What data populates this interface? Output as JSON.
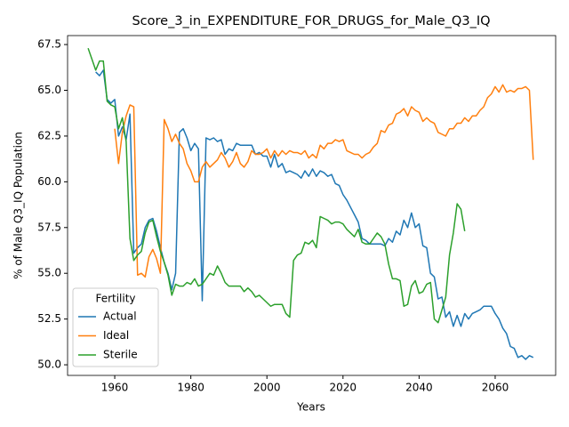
{
  "chart_data": {
    "type": "line",
    "title": "Score_3_in_EXPENDITURE_FOR_DRUGS_for_Male_Q3_IQ",
    "xlabel": "Years",
    "ylabel": "% of Male Q3_IQ Population",
    "legend_title": "Fertility",
    "legend": "lower left",
    "xlim": [
      1947.6,
      2075.9
    ],
    "ylim": [
      49.42,
      67.99
    ],
    "xticks": [
      1960,
      1980,
      2000,
      2020,
      2040,
      2060
    ],
    "yticks": [
      {
        "value": 50,
        "label": "50.0"
      },
      52.5,
      {
        "value": 55,
        "label": "55.0"
      },
      57.5,
      {
        "value": 60,
        "label": "60.0"
      },
      62.5,
      {
        "value": 65,
        "label": "65.0"
      },
      67.5
    ],
    "x": [
      1953,
      1954,
      1955,
      1956,
      1957,
      1958,
      1959,
      1960,
      1961,
      1962,
      1963,
      1964,
      1965,
      1966,
      1967,
      1968,
      1969,
      1970,
      1971,
      1972,
      1973,
      1974,
      1975,
      1976,
      1977,
      1978,
      1979,
      1980,
      1981,
      1982,
      1983,
      1984,
      1985,
      1986,
      1987,
      1988,
      1989,
      1990,
      1991,
      1992,
      1993,
      1994,
      1995,
      1996,
      1997,
      1998,
      1999,
      2000,
      2001,
      2002,
      2003,
      2004,
      2005,
      2006,
      2007,
      2008,
      2009,
      2010,
      2011,
      2012,
      2013,
      2014,
      2015,
      2016,
      2017,
      2018,
      2019,
      2020,
      2021,
      2022,
      2023,
      2024,
      2025,
      2026,
      2027,
      2028,
      2029,
      2030,
      2031,
      2032,
      2033,
      2034,
      2035,
      2036,
      2037,
      2038,
      2039,
      2040,
      2041,
      2042,
      2043,
      2044,
      2045,
      2046,
      2047,
      2048,
      2049,
      2050,
      2051,
      2052,
      2053,
      2054,
      2055,
      2056,
      2057,
      2058,
      2059,
      2060,
      2061,
      2062,
      2063,
      2064,
      2065,
      2066,
      2067,
      2068,
      2069,
      2070
    ],
    "series": [
      {
        "name": "Actual",
        "color": "#1f77b4",
        "values": [
          null,
          null,
          66.0,
          65.8,
          66.1,
          64.5,
          64.3,
          64.5,
          62.5,
          63.0,
          62.3,
          63.7,
          56.1,
          56.4,
          56.6,
          57.5,
          57.9,
          58.0,
          57.3,
          56.4,
          55.6,
          55.0,
          54.1,
          55.0,
          62.7,
          62.9,
          62.4,
          61.7,
          62.1,
          61.8,
          53.5,
          62.4,
          62.3,
          62.4,
          62.2,
          62.3,
          61.5,
          61.8,
          61.7,
          62.1,
          62.0,
          62.0,
          62.0,
          62.0,
          61.5,
          61.6,
          61.4,
          61.4,
          60.8,
          61.5,
          60.8,
          61.0,
          60.5,
          60.6,
          60.5,
          60.4,
          60.2,
          60.6,
          60.3,
          60.7,
          60.3,
          60.6,
          60.5,
          60.3,
          60.4,
          59.9,
          59.8,
          59.3,
          59.0,
          58.6,
          58.2,
          57.8,
          56.9,
          56.8,
          56.6,
          56.6,
          56.6,
          56.6,
          56.5,
          56.9,
          56.7,
          57.3,
          57.1,
          57.9,
          57.5,
          58.3,
          57.5,
          57.7,
          56.5,
          56.4,
          55.0,
          54.8,
          53.6,
          53.7,
          52.6,
          52.9,
          52.1,
          52.7,
          52.1,
          52.8,
          52.5,
          52.8,
          52.9,
          53.0,
          53.2,
          53.2,
          53.2,
          52.8,
          52.5,
          52.0,
          51.7,
          51.0,
          50.9,
          50.4,
          50.5,
          50.3,
          50.5,
          50.4
        ]
      },
      {
        "name": "Ideal",
        "color": "#ff7f0e",
        "values": [
          null,
          null,
          null,
          null,
          null,
          null,
          null,
          62.9,
          61.0,
          62.7,
          63.6,
          64.2,
          64.1,
          54.9,
          55.0,
          54.8,
          55.9,
          56.3,
          55.8,
          55.0,
          63.4,
          62.9,
          62.2,
          62.6,
          62.1,
          61.8,
          61.0,
          60.6,
          60.0,
          60.0,
          60.8,
          61.1,
          60.8,
          61.0,
          61.2,
          61.6,
          61.3,
          60.8,
          61.1,
          61.6,
          61.0,
          60.8,
          61.1,
          61.7,
          61.5,
          61.5,
          61.6,
          61.8,
          61.3,
          61.7,
          61.4,
          61.7,
          61.5,
          61.7,
          61.6,
          61.6,
          61.5,
          61.7,
          61.3,
          61.5,
          61.3,
          62.0,
          61.8,
          62.1,
          62.1,
          62.3,
          62.2,
          62.3,
          61.7,
          61.6,
          61.5,
          61.5,
          61.3,
          61.5,
          61.6,
          61.9,
          62.1,
          62.8,
          62.7,
          63.1,
          63.2,
          63.7,
          63.8,
          64.0,
          63.6,
          64.1,
          63.9,
          63.8,
          63.3,
          63.5,
          63.3,
          63.2,
          62.7,
          62.6,
          62.5,
          62.9,
          62.9,
          63.2,
          63.2,
          63.5,
          63.3,
          63.6,
          63.6,
          63.9,
          64.1,
          64.6,
          64.8,
          65.2,
          64.9,
          65.3,
          64.9,
          65.0,
          64.9,
          65.1,
          65.1,
          65.2,
          65.0,
          61.2
        ]
      },
      {
        "name": "Sterile",
        "color": "#2ca02c",
        "values": [
          67.3,
          66.7,
          66.1,
          66.6,
          66.6,
          64.4,
          64.2,
          64.1,
          62.9,
          63.5,
          62.2,
          56.9,
          55.7,
          56.0,
          56.2,
          57.2,
          57.8,
          57.9,
          57.0,
          56.2,
          55.6,
          54.9,
          53.8,
          54.4,
          54.3,
          54.3,
          54.5,
          54.4,
          54.7,
          54.3,
          54.4,
          54.7,
          55.0,
          54.9,
          55.4,
          55.0,
          54.5,
          54.3,
          54.3,
          54.3,
          54.3,
          54.0,
          54.2,
          54.0,
          53.7,
          53.8,
          53.6,
          53.4,
          53.2,
          53.3,
          53.3,
          53.3,
          52.8,
          52.6,
          55.7,
          56.0,
          56.1,
          56.7,
          56.6,
          56.8,
          56.4,
          58.1,
          58.0,
          57.9,
          57.7,
          57.8,
          57.8,
          57.7,
          57.4,
          57.2,
          57.0,
          57.4,
          56.7,
          56.6,
          56.6,
          56.9,
          57.2,
          57.0,
          56.6,
          55.5,
          54.7,
          54.7,
          54.6,
          53.2,
          53.3,
          54.3,
          54.6,
          53.9,
          54.0,
          54.4,
          54.5,
          52.5,
          52.3,
          53.0,
          53.7,
          56.0,
          57.2,
          58.8,
          58.5,
          57.3,
          null,
          null,
          null,
          null,
          null,
          null,
          null,
          null,
          null,
          null,
          null,
          null,
          null,
          null,
          null,
          null,
          null,
          null
        ]
      }
    ]
  }
}
